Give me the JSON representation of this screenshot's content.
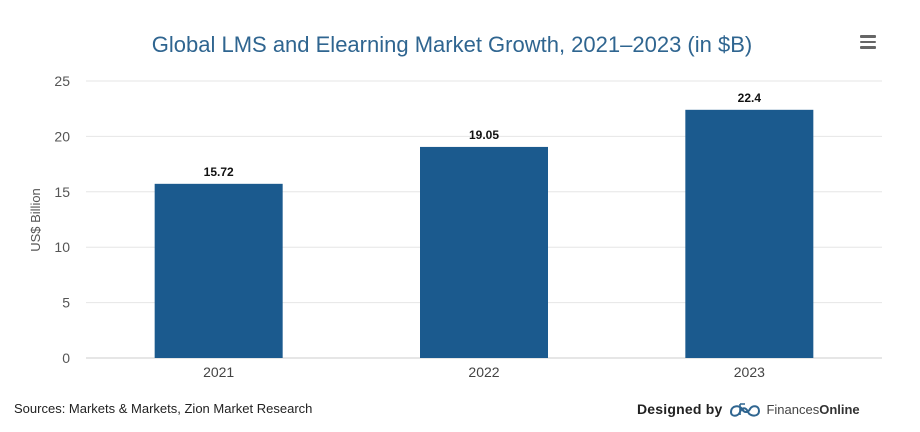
{
  "chart_data": {
    "type": "bar",
    "title": "Global LMS and Elearning Market Growth, 2021–2023 (in $B)",
    "xlabel": "",
    "ylabel": "US$ Billion",
    "categories": [
      "2021",
      "2022",
      "2023"
    ],
    "values": [
      15.72,
      19.05,
      22.4
    ],
    "data_labels": [
      "15.72",
      "19.05",
      "22.4"
    ],
    "yticks": [
      0,
      5,
      10,
      15,
      20,
      25
    ],
    "ylim": [
      0,
      25
    ],
    "grid": true,
    "legend": "none",
    "colors": {
      "bar": "#1b5a8e",
      "title": "#2f6590",
      "grid": "#e6e6e6",
      "axis": "#cccccc"
    }
  },
  "footer": {
    "source": "Sources: Markets & Markets, Zion Market Research",
    "designed_by": "Designed by",
    "brand_prefix": "Finances",
    "brand_suffix": "Online"
  },
  "menu": {
    "icon": "hamburger-menu-icon"
  }
}
